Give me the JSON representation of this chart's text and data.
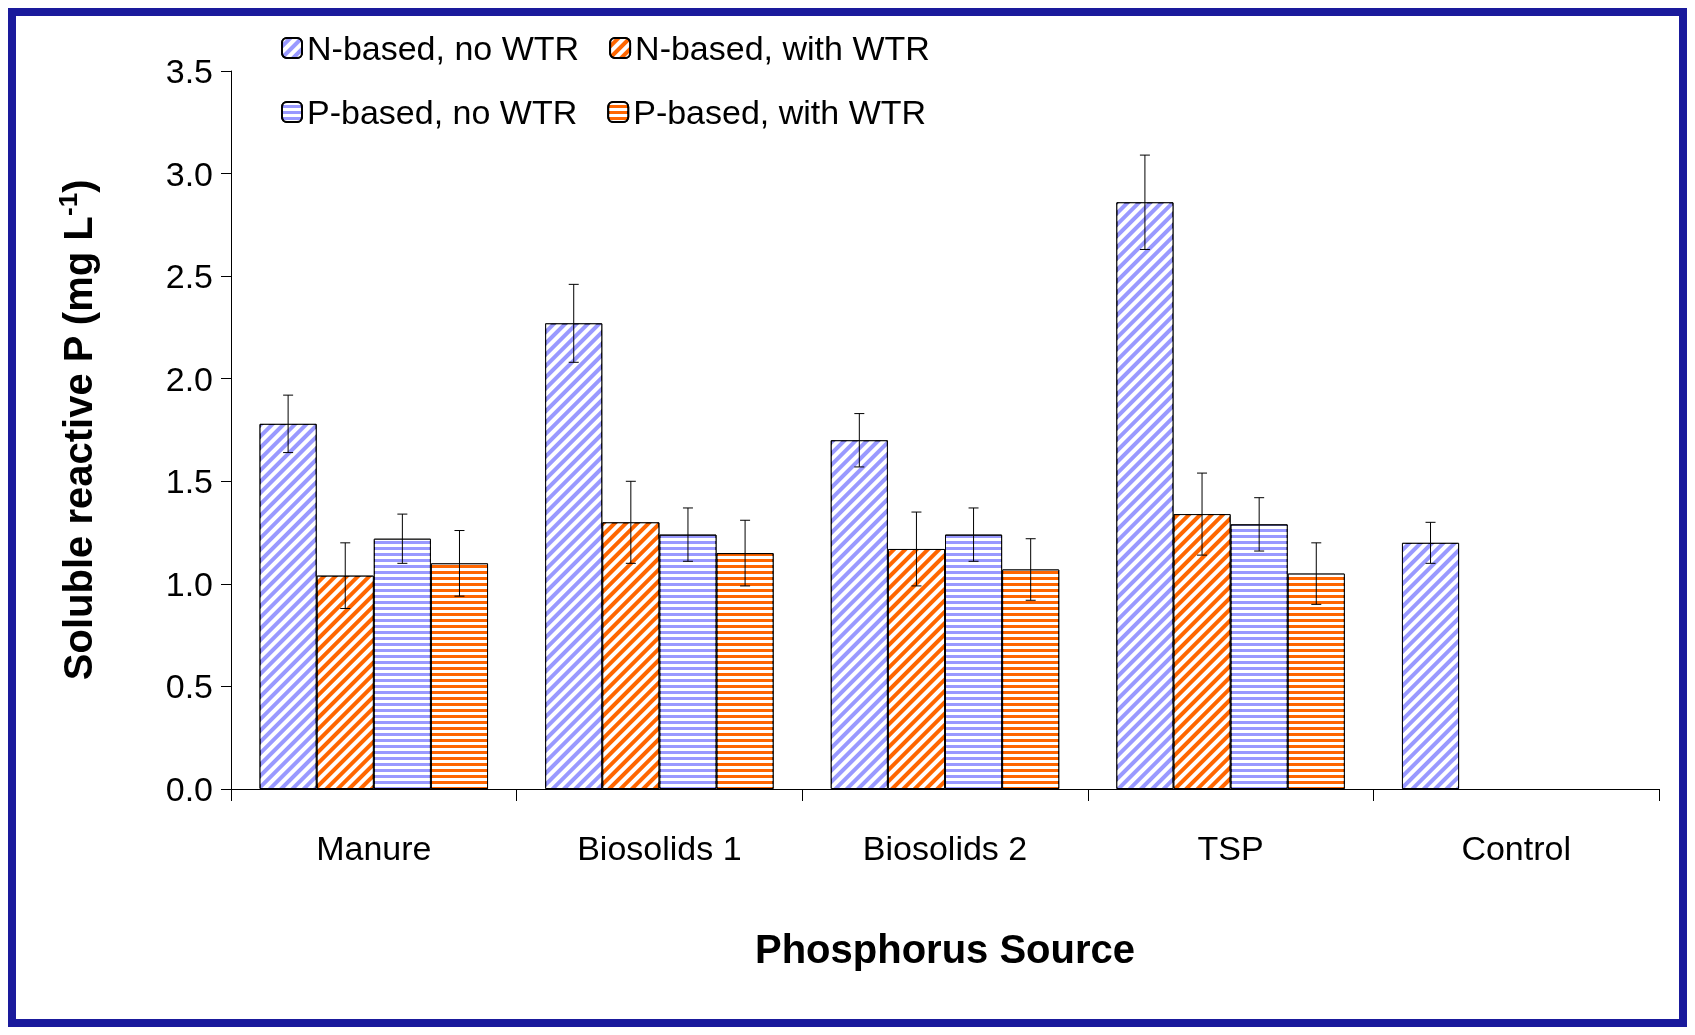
{
  "chart_data": {
    "type": "bar",
    "xlabel": "Phosphorus Source",
    "ylabel": "Soluble reactive P (mg L$^{-1}$)",
    "categories": [
      "Manure",
      "Biosolids 1",
      "Biosolids 2",
      "TSP",
      "Control"
    ],
    "series": [
      {
        "name": "N-based, no WTR",
        "color": "#9999ff",
        "values": [
          1.78,
          2.27,
          1.7,
          2.86,
          1.2
        ],
        "errors": [
          0.14,
          0.19,
          0.13,
          0.23,
          0.1
        ]
      },
      {
        "name": "N-based, with WTR",
        "color": "#ff6600",
        "values": [
          1.04,
          1.3,
          1.17,
          1.34,
          null
        ],
        "errors": [
          0.16,
          0.2,
          0.18,
          0.2,
          null
        ]
      },
      {
        "name": "P-based, no WTR",
        "color": "#9999ff",
        "values": [
          1.22,
          1.24,
          1.24,
          1.29,
          null
        ],
        "errors": [
          0.12,
          0.13,
          0.13,
          0.13,
          null
        ]
      },
      {
        "name": "P-based, with WTR",
        "color": "#ff6600",
        "values": [
          1.1,
          1.15,
          1.07,
          1.05,
          null
        ],
        "errors": [
          0.16,
          0.16,
          0.15,
          0.15,
          null
        ]
      }
    ],
    "ylim": [
      0,
      3.5
    ],
    "yticks": [
      {
        "value": 0,
        "label": "0.0"
      },
      {
        "value": 0.5,
        "label": "0.5"
      },
      {
        "value": 1,
        "label": "1.0"
      },
      {
        "value": 1.5,
        "label": "1.5"
      },
      {
        "value": 2,
        "label": "2.0"
      },
      {
        "value": 2.5,
        "label": "2.5"
      },
      {
        "value": 3,
        "label": "3.0"
      },
      {
        "value": 3.5,
        "label": "3.5"
      }
    ],
    "grid": false,
    "legend": "top"
  }
}
